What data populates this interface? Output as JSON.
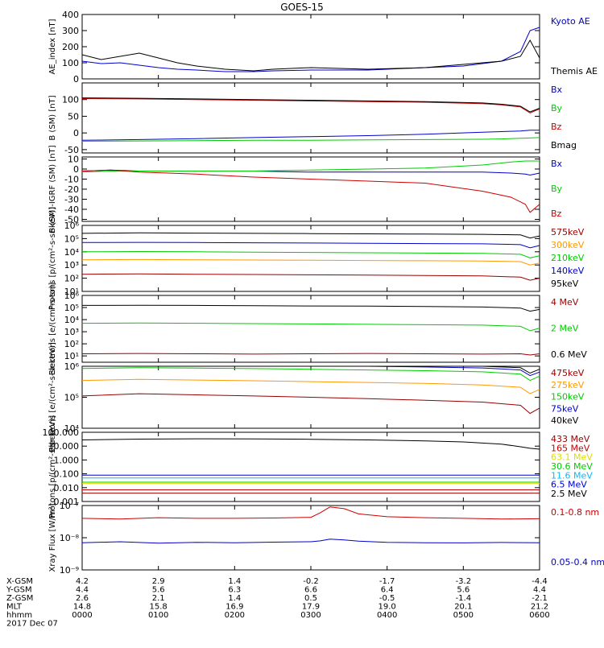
{
  "title": "GOES-15",
  "colors": {
    "black": "#000000",
    "blue": "#0000cc",
    "green": "#00cc00",
    "red": "#cc0000",
    "orange": "#ff9900",
    "yellow": "#dddd00",
    "cyan": "#00bbff",
    "purple": "#770077",
    "darkred": "#990000"
  },
  "chart_data": [
    {
      "type": "line",
      "id": "ae",
      "ylabel": "AE_index [nT]",
      "yscale": "linear",
      "ylim": [
        0,
        400
      ],
      "yticks": [
        0,
        100,
        200,
        300,
        400
      ],
      "ytick_labels": [
        "0",
        "100",
        "200",
        "300",
        "400"
      ],
      "x": [
        0,
        20,
        40,
        60,
        80,
        100,
        120,
        150,
        180,
        200,
        240,
        300,
        360,
        400,
        440,
        460,
        470,
        480
      ],
      "series": [
        {
          "name": "Kyoto AE",
          "color": "#0000cc",
          "values": [
            110,
            95,
            100,
            85,
            70,
            60,
            55,
            45,
            45,
            50,
            55,
            55,
            70,
            80,
            110,
            170,
            300,
            320
          ]
        },
        {
          "name": "Themis AE",
          "color": "#000000",
          "values": [
            150,
            120,
            140,
            160,
            130,
            100,
            80,
            60,
            50,
            60,
            70,
            60,
            70,
            90,
            110,
            140,
            240,
            130
          ]
        }
      ]
    },
    {
      "type": "line",
      "id": "bsm",
      "ylabel": "B (SM) [nT]",
      "yscale": "linear",
      "ylim": [
        -60,
        150
      ],
      "yticks": [
        -50,
        0,
        50,
        100
      ],
      "ytick_labels": [
        "-50",
        "0",
        "50",
        "100"
      ],
      "x": [
        0,
        60,
        120,
        180,
        240,
        300,
        360,
        420,
        440,
        460,
        470,
        480
      ],
      "series": [
        {
          "name": "Bx",
          "color": "#0000cc",
          "values": [
            -22,
            -20,
            -17,
            -14,
            -11,
            -8,
            -4,
            2,
            4,
            6,
            8,
            8
          ]
        },
        {
          "name": "By",
          "color": "#00cc00",
          "values": [
            -25,
            -24,
            -23,
            -22,
            -22,
            -21,
            -20,
            -19,
            -18,
            -16,
            -15,
            -14
          ]
        },
        {
          "name": "Bz",
          "color": "#cc0000",
          "values": [
            103,
            102,
            100,
            98,
            96,
            94,
            92,
            88,
            84,
            78,
            60,
            72
          ]
        },
        {
          "name": "Bmag",
          "color": "#000000",
          "values": [
            105,
            104,
            102,
            100,
            98,
            96,
            94,
            90,
            86,
            80,
            63,
            74
          ]
        }
      ]
    },
    {
      "type": "line",
      "id": "bigrf",
      "ylabel": "B (SM)-IGRF (SM) [nT]",
      "yscale": "linear",
      "ylim": [
        -52,
        12
      ],
      "yticks": [
        -50,
        -40,
        -30,
        -20,
        -10,
        0,
        10
      ],
      "ytick_labels": [
        "-50",
        "-40",
        "-30",
        "-20",
        "-10",
        "0",
        "10"
      ],
      "x": [
        0,
        30,
        60,
        120,
        180,
        240,
        300,
        360,
        420,
        450,
        465,
        470,
        480
      ],
      "series": [
        {
          "name": "Bx",
          "color": "#0000cc",
          "values": [
            -2,
            -1,
            -2,
            -2,
            -2,
            -3,
            -3,
            -3,
            -3,
            -4,
            -5,
            -6,
            -4
          ]
        },
        {
          "name": "By",
          "color": "#00cc00",
          "values": [
            -3,
            -2,
            -2,
            -2,
            -2,
            -1,
            0,
            1,
            4,
            7,
            8,
            8,
            8
          ]
        },
        {
          "name": "Bz",
          "color": "#cc0000",
          "values": [
            -2,
            -1,
            -3,
            -5,
            -8,
            -10,
            -12,
            -14,
            -22,
            -28,
            -35,
            -43,
            -35
          ]
        }
      ]
    },
    {
      "type": "line",
      "id": "protons1",
      "ylabel": "Protons [p/(cm²-s-sr-keV)]",
      "yscale": "log",
      "ylim": [
        10,
        1000000
      ],
      "yticks": [
        10,
        100,
        1000,
        10000,
        100000,
        1000000
      ],
      "ytick_labels": [
        "10¹",
        "10²",
        "10³",
        "10⁴",
        "10⁵",
        "10⁶"
      ],
      "x": [
        0,
        60,
        120,
        180,
        240,
        300,
        360,
        420,
        460,
        470,
        480
      ],
      "series": [
        {
          "name": "575keV",
          "color": "#990000",
          "values": [
            200,
            210,
            200,
            190,
            180,
            170,
            160,
            150,
            120,
            70,
            100
          ]
        },
        {
          "name": "300keV",
          "color": "#ff9900",
          "values": [
            2500,
            2600,
            2500,
            2400,
            2300,
            2200,
            2100,
            2000,
            1800,
            1000,
            1400
          ]
        },
        {
          "name": "210keV",
          "color": "#00cc00",
          "values": [
            10000,
            10500,
            10000,
            9500,
            9000,
            8500,
            8000,
            7500,
            6500,
            3500,
            5000
          ]
        },
        {
          "name": "140keV",
          "color": "#0000cc",
          "values": [
            50000,
            52000,
            50000,
            48000,
            46000,
            44000,
            42000,
            40000,
            35000,
            20000,
            30000
          ]
        },
        {
          "name": "95keV",
          "color": "#000000",
          "values": [
            250000,
            270000,
            260000,
            250000,
            240000,
            230000,
            220000,
            210000,
            190000,
            110000,
            160000
          ]
        }
      ]
    },
    {
      "type": "line",
      "id": "electrons1",
      "ylabel": "Electrons [e/(cm²-s-sr)]",
      "yscale": "log",
      "ylim": [
        3,
        1000000
      ],
      "yticks": [
        10,
        100,
        1000,
        10000,
        100000,
        1000000
      ],
      "ytick_labels": [
        "10¹",
        "10²",
        "10³",
        "10⁴",
        "10⁵",
        "10⁶"
      ],
      "x": [
        0,
        60,
        120,
        180,
        240,
        300,
        360,
        420,
        460,
        470,
        480
      ],
      "series": [
        {
          "name": "4 MeV",
          "color": "#990000",
          "values": [
            15,
            16,
            15,
            14,
            15,
            16,
            15,
            14,
            15,
            12,
            15
          ]
        },
        {
          "name": "2 MeV",
          "color": "#00cc00",
          "values": [
            5000,
            5200,
            5000,
            4700,
            4400,
            4100,
            3800,
            3500,
            2800,
            1200,
            2000
          ]
        },
        {
          "name": "0.6 MeV",
          "color": "#000000",
          "values": [
            150000,
            155000,
            150000,
            140000,
            135000,
            130000,
            120000,
            110000,
            90000,
            50000,
            70000
          ]
        }
      ]
    },
    {
      "type": "line",
      "id": "electrons2",
      "ylabel": "Electrons [e/(cm²-s-sr-keV)]",
      "yscale": "log",
      "ylim": [
        10000,
        1000000
      ],
      "yticks": [
        10000,
        100000,
        1000000
      ],
      "ytick_labels": [
        "10⁴",
        "10⁵",
        "10⁶"
      ],
      "x": [
        0,
        60,
        120,
        180,
        240,
        300,
        360,
        420,
        460,
        470,
        480
      ],
      "series": [
        {
          "name": "475keV",
          "color": "#990000",
          "values": [
            110000,
            130000,
            120000,
            110000,
            100000,
            90000,
            80000,
            70000,
            55000,
            30000,
            45000
          ]
        },
        {
          "name": "275keV",
          "color": "#ff9900",
          "values": [
            350000,
            380000,
            360000,
            340000,
            320000,
            300000,
            280000,
            250000,
            210000,
            130000,
            180000
          ]
        },
        {
          "name": "150keV",
          "color": "#00cc00",
          "values": [
            850000,
            900000,
            870000,
            840000,
            800000,
            760000,
            720000,
            660000,
            560000,
            350000,
            480000
          ]
        },
        {
          "name": "75keV",
          "color": "#0000cc",
          "values": [
            1000000,
            1000000,
            1000000,
            1000000,
            1000000,
            1000000,
            950000,
            880000,
            760000,
            500000,
            650000
          ]
        },
        {
          "name": "40keV",
          "color": "#000000",
          "values": [
            1000000,
            1000000,
            1000000,
            1000000,
            1000000,
            1000000,
            1000000,
            1000000,
            900000,
            600000,
            800000
          ]
        }
      ]
    },
    {
      "type": "line",
      "id": "protons2",
      "ylabel": "Protons [p/(cm²-s-sr-keV)]",
      "yscale": "log",
      "ylim": [
        0.001,
        100
      ],
      "yticks": [
        0.001,
        0.01,
        0.1,
        1,
        10,
        100
      ],
      "ytick_labels": [
        "0.001",
        "0.010",
        "0.100",
        "1.000",
        "10.000",
        "100.000"
      ],
      "x": [
        0,
        60,
        120,
        180,
        240,
        300,
        360,
        400,
        440,
        460,
        470,
        480
      ],
      "series": [
        {
          "name": "433 MeV",
          "color": "#990000",
          "values": [
            0.004,
            0.004,
            0.004,
            0.004,
            0.004,
            0.004,
            0.004,
            0.004,
            0.004,
            0.004,
            0.004,
            0.004
          ]
        },
        {
          "name": "165 MeV",
          "color": "#cc0000",
          "values": [
            0.007,
            0.007,
            0.007,
            0.007,
            0.007,
            0.007,
            0.007,
            0.007,
            0.007,
            0.007,
            0.007,
            0.007
          ]
        },
        {
          "name": "63.1 MeV",
          "color": "#dddd00",
          "values": [
            0.02,
            0.02,
            0.02,
            0.02,
            0.02,
            0.02,
            0.02,
            0.02,
            0.02,
            0.02,
            0.02,
            0.02
          ]
        },
        {
          "name": "30.6 MeV",
          "color": "#00cc00",
          "values": [
            0.025,
            0.025,
            0.025,
            0.025,
            0.025,
            0.025,
            0.025,
            0.025,
            0.025,
            0.025,
            0.025,
            0.025
          ]
        },
        {
          "name": "11.6 MeV",
          "color": "#00bbff",
          "values": [
            0.05,
            0.05,
            0.05,
            0.05,
            0.05,
            0.05,
            0.05,
            0.05,
            0.05,
            0.05,
            0.05,
            0.05
          ]
        },
        {
          "name": "6.5 MeV",
          "color": "#0000cc",
          "values": [
            0.08,
            0.08,
            0.08,
            0.08,
            0.08,
            0.08,
            0.08,
            0.08,
            0.08,
            0.08,
            0.08,
            0.08
          ]
        },
        {
          "name": "2.5 MeV",
          "color": "#000000",
          "values": [
            28,
            32,
            34,
            33,
            31,
            28,
            24,
            20,
            14,
            9,
            7,
            6
          ]
        }
      ]
    },
    {
      "type": "line",
      "id": "xray",
      "ylabel": "Xray Flux [W/m²]",
      "yscale": "log",
      "ylim": [
        1e-09,
        1e-07
      ],
      "yticks": [
        1e-09,
        1e-08,
        1e-07
      ],
      "ytick_labels": [
        "10⁻⁹",
        "10⁻⁸",
        "10⁻⁷"
      ],
      "x": [
        0,
        40,
        80,
        120,
        160,
        200,
        240,
        250,
        260,
        275,
        290,
        320,
        360,
        400,
        440,
        480
      ],
      "series": [
        {
          "name": "0.1-0.8 nm",
          "color": "#cc0000",
          "values": [
            4e-08,
            3.8e-08,
            4.2e-08,
            4e-08,
            4e-08,
            4.1e-08,
            4.3e-08,
            6e-08,
            9e-08,
            8e-08,
            5.5e-08,
            4.5e-08,
            4.2e-08,
            4e-08,
            3.8e-08,
            3.9e-08
          ]
        },
        {
          "name": "0.05-0.4 nm",
          "color": "#0000cc",
          "values": [
            7e-09,
            7.5e-09,
            6.8e-09,
            7.2e-09,
            7e-09,
            7.3e-09,
            7.5e-09,
            8e-09,
            9e-09,
            8.5e-09,
            7.8e-09,
            7.2e-09,
            7e-09,
            6.9e-09,
            7.1e-09,
            7e-09
          ]
        }
      ]
    }
  ],
  "time_axis": {
    "range_minutes": [
      0,
      360
    ],
    "tick_minutes": [
      0,
      60,
      120,
      180,
      240,
      300,
      360
    ],
    "rows": [
      {
        "label": "X-GSM",
        "values": [
          "4.2",
          "2.9",
          "1.4",
          "-0.2",
          "-1.7",
          "-3.2",
          "-4.4"
        ]
      },
      {
        "label": "Y-GSM",
        "values": [
          "4.4",
          "5.6",
          "6.3",
          "6.6",
          "6.4",
          "5.6",
          "4.4"
        ]
      },
      {
        "label": "Z-GSM",
        "values": [
          "2.6",
          "2.1",
          "1.4",
          "0.5",
          "-0.5",
          "-1.4",
          "-2.1"
        ]
      },
      {
        "label": "MLT",
        "values": [
          "14.8",
          "15.8",
          "16.9",
          "17.9",
          "19.0",
          "20.1",
          "21.2"
        ]
      },
      {
        "label": "hhmm",
        "values": [
          "0000",
          "0100",
          "0200",
          "0300",
          "0400",
          "0500",
          "0600"
        ]
      }
    ],
    "date": "2017 Dec 07"
  }
}
